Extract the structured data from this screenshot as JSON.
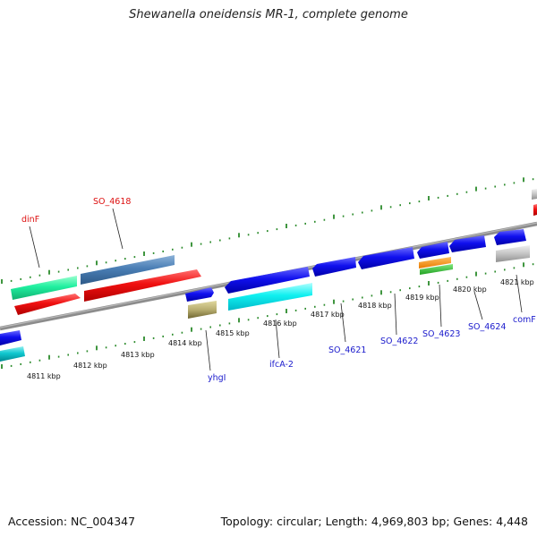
{
  "title": "Shewanella oneidensis MR-1, complete genome",
  "footer": {
    "accession": "Accession: NC_004347",
    "summary": "Topology: circular; Length: 4,969,803 bp; Genes: 4,448"
  },
  "colors": {
    "backbone": "#8c8c8c",
    "tick_dots": "#2a8a2a",
    "label_red": "#dd1111",
    "label_blue": "#1a1acc"
  },
  "tick_labels": [
    "4811 kbp",
    "4812 kbp",
    "4813 kbp",
    "4814 kbp",
    "4815 kbp",
    "4816 kbp",
    "4817 kbp",
    "4818 kbp",
    "4819 kbp",
    "4820 kbp",
    "4821 kbp"
  ],
  "genes_top": [
    {
      "label": "dinF",
      "color": "#dd1111"
    },
    {
      "label": "SO_4618",
      "color": "#dd1111"
    }
  ],
  "genes_bottom": [
    {
      "label": "yhgI",
      "color": "#1a1acc"
    },
    {
      "label": "ifcA-2",
      "color": "#1a1acc"
    },
    {
      "label": "SO_4621",
      "color": "#1a1acc"
    },
    {
      "label": "SO_4622",
      "color": "#1a1acc"
    },
    {
      "label": "SO_4623",
      "color": "#1a1acc"
    },
    {
      "label": "SO_4624",
      "color": "#1a1acc"
    },
    {
      "label": "comF",
      "color": "#1a1acc"
    }
  ]
}
